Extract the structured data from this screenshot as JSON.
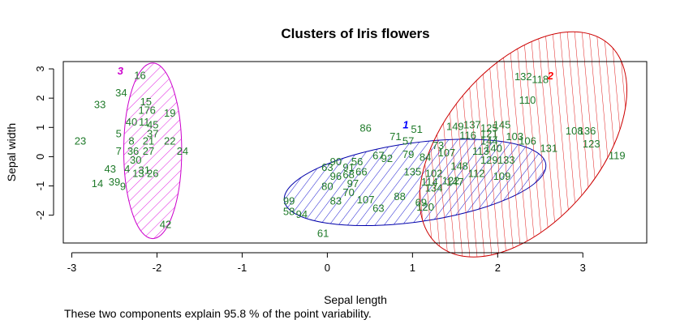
{
  "chart_data": {
    "type": "scatter",
    "title": "Clusters of Iris flowers",
    "xlabel": "Sepal length",
    "ylabel": "Sepal width",
    "xlim": [
      -3.1,
      3.75
    ],
    "ylim": [
      -2.95,
      3.25
    ],
    "x_ticks": [
      -3,
      -2,
      -1,
      0,
      1,
      2,
      3
    ],
    "y_ticks": [
      -2,
      -1,
      0,
      1,
      2,
      3
    ],
    "grid": false,
    "clusters": [
      {
        "name": "1",
        "label_color": "#0000ff",
        "label_pos": [
          0.92,
          1.1
        ],
        "ellipse": {
          "cx": 1.03,
          "cy": -0.88,
          "rx": 1.55,
          "ry": 1.35,
          "rotation": 8
        }
      },
      {
        "name": "2",
        "label_color": "#ff0000",
        "label_pos": [
          2.62,
          2.78
        ],
        "ellipse": {
          "cx": 2.3,
          "cy": 0.42,
          "rx": 1.55,
          "ry": 2.65,
          "rotation": 50
        }
      },
      {
        "name": "3",
        "label_color": "#cc00cc",
        "label_pos": [
          -2.43,
          2.95
        ],
        "ellipse": {
          "cx": -2.05,
          "cy": 0.2,
          "rx": 0.34,
          "ry": 3.0,
          "rotation": 0
        }
      }
    ],
    "series": [
      {
        "name": "cluster-3",
        "color": "#1f7a2a",
        "points": [
          [
            -2.2,
            2.8,
            "16"
          ],
          [
            -2.42,
            2.2,
            "34"
          ],
          [
            -2.67,
            1.8,
            "33"
          ],
          [
            -2.13,
            1.9,
            "15"
          ],
          [
            -2.15,
            1.6,
            "17"
          ],
          [
            -2.05,
            1.6,
            "6"
          ],
          [
            -1.85,
            1.5,
            "19"
          ],
          [
            -2.3,
            1.2,
            "40"
          ],
          [
            -2.15,
            1.2,
            "11"
          ],
          [
            -2.05,
            1.1,
            "45"
          ],
          [
            -2.45,
            0.8,
            "5"
          ],
          [
            -2.05,
            0.8,
            "37"
          ],
          [
            -1.85,
            0.55,
            "22"
          ],
          [
            -2.3,
            0.55,
            "8"
          ],
          [
            -2.1,
            0.55,
            "21"
          ],
          [
            -2.9,
            0.55,
            "23"
          ],
          [
            -2.1,
            0.2,
            "27"
          ],
          [
            -2.45,
            0.2,
            "7"
          ],
          [
            -2.28,
            0.2,
            "36"
          ],
          [
            -1.7,
            0.2,
            "24"
          ],
          [
            -2.25,
            -0.1,
            "30"
          ],
          [
            -2.55,
            -0.4,
            "43"
          ],
          [
            -2.35,
            -0.4,
            "4"
          ],
          [
            -2.15,
            -0.45,
            "31"
          ],
          [
            -2.05,
            -0.55,
            "26"
          ],
          [
            -2.22,
            -0.55,
            "13"
          ],
          [
            -2.7,
            -0.9,
            "14"
          ],
          [
            -2.5,
            -0.85,
            "39"
          ],
          [
            -2.4,
            -1.0,
            "9"
          ],
          [
            -1.9,
            -2.3,
            "42"
          ]
        ]
      },
      {
        "name": "cluster-1",
        "color": "#1f7a2a",
        "points": [
          [
            0.45,
            1.0,
            "86"
          ],
          [
            0.8,
            0.7,
            "71"
          ],
          [
            1.05,
            0.95,
            "51"
          ],
          [
            0.95,
            0.55,
            "57"
          ],
          [
            0.6,
            0.05,
            "67"
          ],
          [
            0.7,
            -0.05,
            "92"
          ],
          [
            0.35,
            -0.15,
            "56"
          ],
          [
            0.1,
            -0.15,
            "90"
          ],
          [
            0.0,
            -0.35,
            "63"
          ],
          [
            0.25,
            -0.35,
            "91"
          ],
          [
            0.4,
            -0.5,
            "66"
          ],
          [
            0.25,
            -0.6,
            "68"
          ],
          [
            0.1,
            -0.65,
            "96"
          ],
          [
            0.3,
            -0.9,
            "97"
          ],
          [
            0.0,
            -1.0,
            "80"
          ],
          [
            0.25,
            -1.2,
            "70"
          ],
          [
            0.1,
            -1.5,
            "83"
          ],
          [
            0.45,
            -1.45,
            "107"
          ],
          [
            0.6,
            -1.75,
            "63b"
          ],
          [
            -0.45,
            -1.5,
            "99"
          ],
          [
            -0.45,
            -1.85,
            "58"
          ],
          [
            -0.3,
            -1.95,
            "94"
          ],
          [
            -0.05,
            -2.6,
            "61"
          ],
          [
            0.85,
            -1.35,
            "88"
          ],
          [
            1.1,
            -1.55,
            "69"
          ],
          [
            1.15,
            -1.7,
            "120"
          ],
          [
            1.0,
            -0.5,
            "135"
          ],
          [
            1.25,
            -0.55,
            "102"
          ],
          [
            1.15,
            0.0,
            "84"
          ],
          [
            1.3,
            0.4,
            "73"
          ],
          [
            1.2,
            -0.85,
            "114"
          ],
          [
            1.45,
            -0.8,
            "122"
          ],
          [
            1.25,
            -1.05,
            "134"
          ],
          [
            0.95,
            0.1,
            "79"
          ],
          [
            1.55,
            -0.3,
            "148"
          ],
          [
            1.4,
            0.15,
            "107b"
          ]
        ]
      },
      {
        "name": "cluster-2",
        "color": "#1f7a2a",
        "points": [
          [
            2.3,
            2.75,
            "132"
          ],
          [
            2.5,
            2.65,
            "118"
          ],
          [
            2.35,
            1.95,
            "110"
          ],
          [
            1.5,
            1.05,
            "149"
          ],
          [
            1.7,
            1.1,
            "137"
          ],
          [
            1.9,
            1.0,
            "125"
          ],
          [
            2.05,
            1.1,
            "145"
          ],
          [
            1.65,
            0.75,
            "116"
          ],
          [
            2.2,
            0.7,
            "103"
          ],
          [
            2.35,
            0.55,
            "106"
          ],
          [
            2.6,
            0.3,
            "131"
          ],
          [
            2.9,
            0.9,
            "108"
          ],
          [
            3.05,
            0.9,
            "136"
          ],
          [
            3.1,
            0.45,
            "123"
          ],
          [
            3.4,
            0.05,
            "119"
          ],
          [
            1.9,
            0.55,
            "144"
          ],
          [
            1.95,
            0.3,
            "140"
          ],
          [
            1.8,
            0.2,
            "113"
          ],
          [
            1.9,
            -0.1,
            "129"
          ],
          [
            2.1,
            -0.1,
            "133"
          ],
          [
            2.05,
            -0.65,
            "109"
          ],
          [
            1.75,
            -0.55,
            "112"
          ],
          [
            1.5,
            -0.85,
            "147"
          ],
          [
            1.9,
            0.8,
            "121"
          ]
        ]
      }
    ],
    "annotation": "These two components explain 95.8 % of the point variability."
  }
}
